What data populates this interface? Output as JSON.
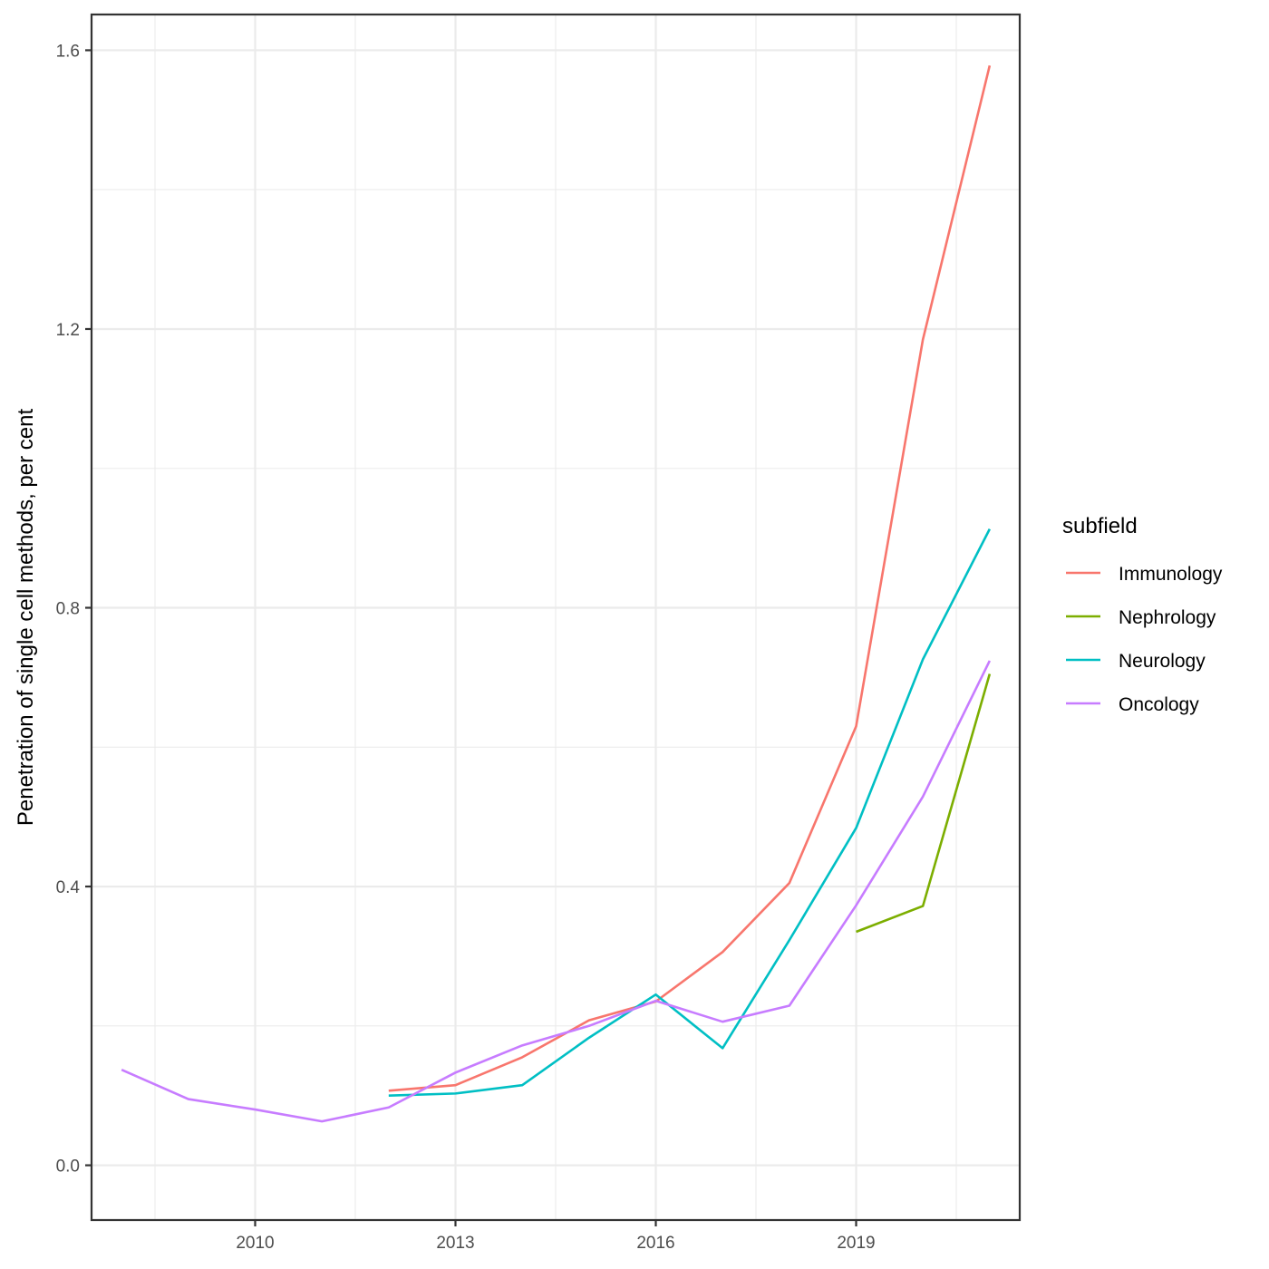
{
  "chart_data": {
    "type": "line",
    "title": "",
    "xlabel": "",
    "ylabel": "Penetration of single cell methods, per cent",
    "xlim": [
      2007.55,
      2021.45
    ],
    "ylim": [
      -0.0786,
      1.6513
    ],
    "x_ticks": [
      2010,
      2013,
      2016,
      2019
    ],
    "x_tick_labels": [
      "2010",
      "2013",
      "2016",
      "2019"
    ],
    "x_minor_ticks": [
      2008.5,
      2011.5,
      2014.5,
      2017.5,
      2020.5
    ],
    "y_ticks": [
      0.0,
      0.4,
      0.8,
      1.2,
      1.6
    ],
    "y_tick_labels": [
      "0.0",
      "0.4",
      "0.8",
      "1.2",
      "1.6"
    ],
    "y_minor_ticks": [
      0.2,
      0.6,
      1.0,
      1.4
    ],
    "grid": true,
    "legend": {
      "title": "subfield",
      "position": "right"
    },
    "series": [
      {
        "name": "Immunology",
        "color": "#F8766D",
        "points": [
          [
            2012,
            0.107
          ],
          [
            2013,
            0.115
          ],
          [
            2014,
            0.155
          ],
          [
            2015,
            0.208
          ],
          [
            2016,
            0.235
          ],
          [
            2017,
            0.306
          ],
          [
            2018,
            0.405
          ],
          [
            2019,
            0.63
          ],
          [
            2020,
            1.185
          ],
          [
            2021,
            1.578
          ]
        ]
      },
      {
        "name": "Nephrology",
        "color": "#7CAE00",
        "points": [
          [
            2019,
            0.335
          ],
          [
            2020,
            0.372
          ],
          [
            2021,
            0.705
          ]
        ]
      },
      {
        "name": "Neurology",
        "color": "#00BFC4",
        "points": [
          [
            2012,
            0.1
          ],
          [
            2013,
            0.103
          ],
          [
            2014,
            0.115
          ],
          [
            2015,
            0.183
          ],
          [
            2016,
            0.245
          ],
          [
            2017,
            0.168
          ],
          [
            2018,
            0.323
          ],
          [
            2019,
            0.484
          ],
          [
            2020,
            0.726
          ],
          [
            2021,
            0.913
          ]
        ]
      },
      {
        "name": "Oncology",
        "color": "#C77CFF",
        "points": [
          [
            2008,
            0.137
          ],
          [
            2009,
            0.095
          ],
          [
            2010,
            0.08
          ],
          [
            2011,
            0.063
          ],
          [
            2012,
            0.083
          ],
          [
            2013,
            0.133
          ],
          [
            2014,
            0.172
          ],
          [
            2015,
            0.2
          ],
          [
            2016,
            0.236
          ],
          [
            2017,
            0.206
          ],
          [
            2018,
            0.229
          ],
          [
            2019,
            0.373
          ],
          [
            2020,
            0.529
          ],
          [
            2021,
            0.724
          ]
        ]
      }
    ]
  }
}
